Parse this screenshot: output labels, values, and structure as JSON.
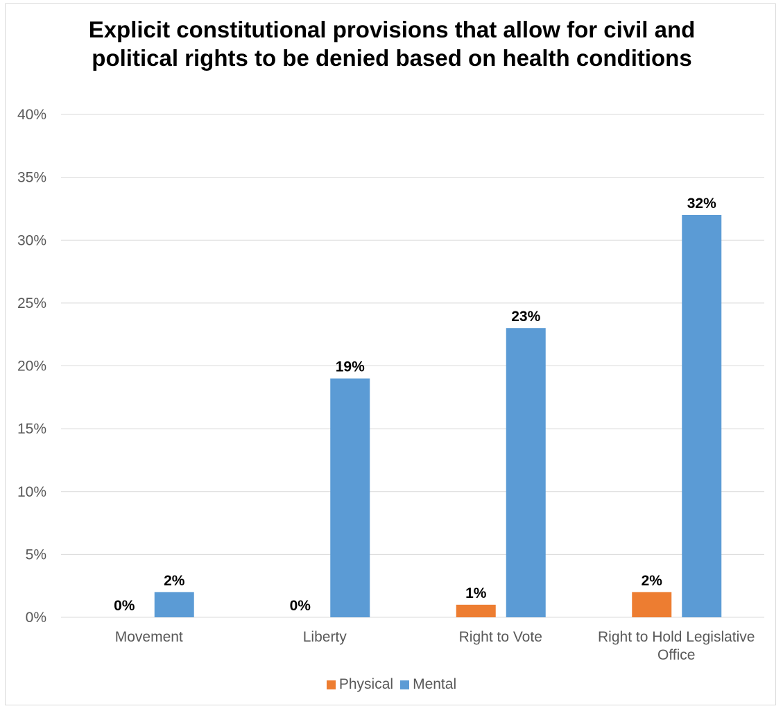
{
  "chart_data": {
    "type": "bar",
    "title": "Explicit constitutional provisions that allow for civil and political rights to be denied based on health conditions",
    "categories": [
      "Movement",
      "Liberty",
      "Right to Vote",
      "Right to Hold Legislative Office"
    ],
    "series": [
      {
        "name": "Physical",
        "values": [
          0,
          0,
          1,
          2
        ],
        "color": "#ED7D31"
      },
      {
        "name": "Mental",
        "values": [
          2,
          19,
          23,
          32
        ],
        "color": "#5B9BD5"
      }
    ],
    "ylim": [
      0,
      40
    ],
    "yticks": [
      "0%",
      "5%",
      "10%",
      "15%",
      "20%",
      "25%",
      "30%",
      "35%",
      "40%"
    ],
    "grid": true,
    "legend": "bottom",
    "value_suffix": "%"
  }
}
